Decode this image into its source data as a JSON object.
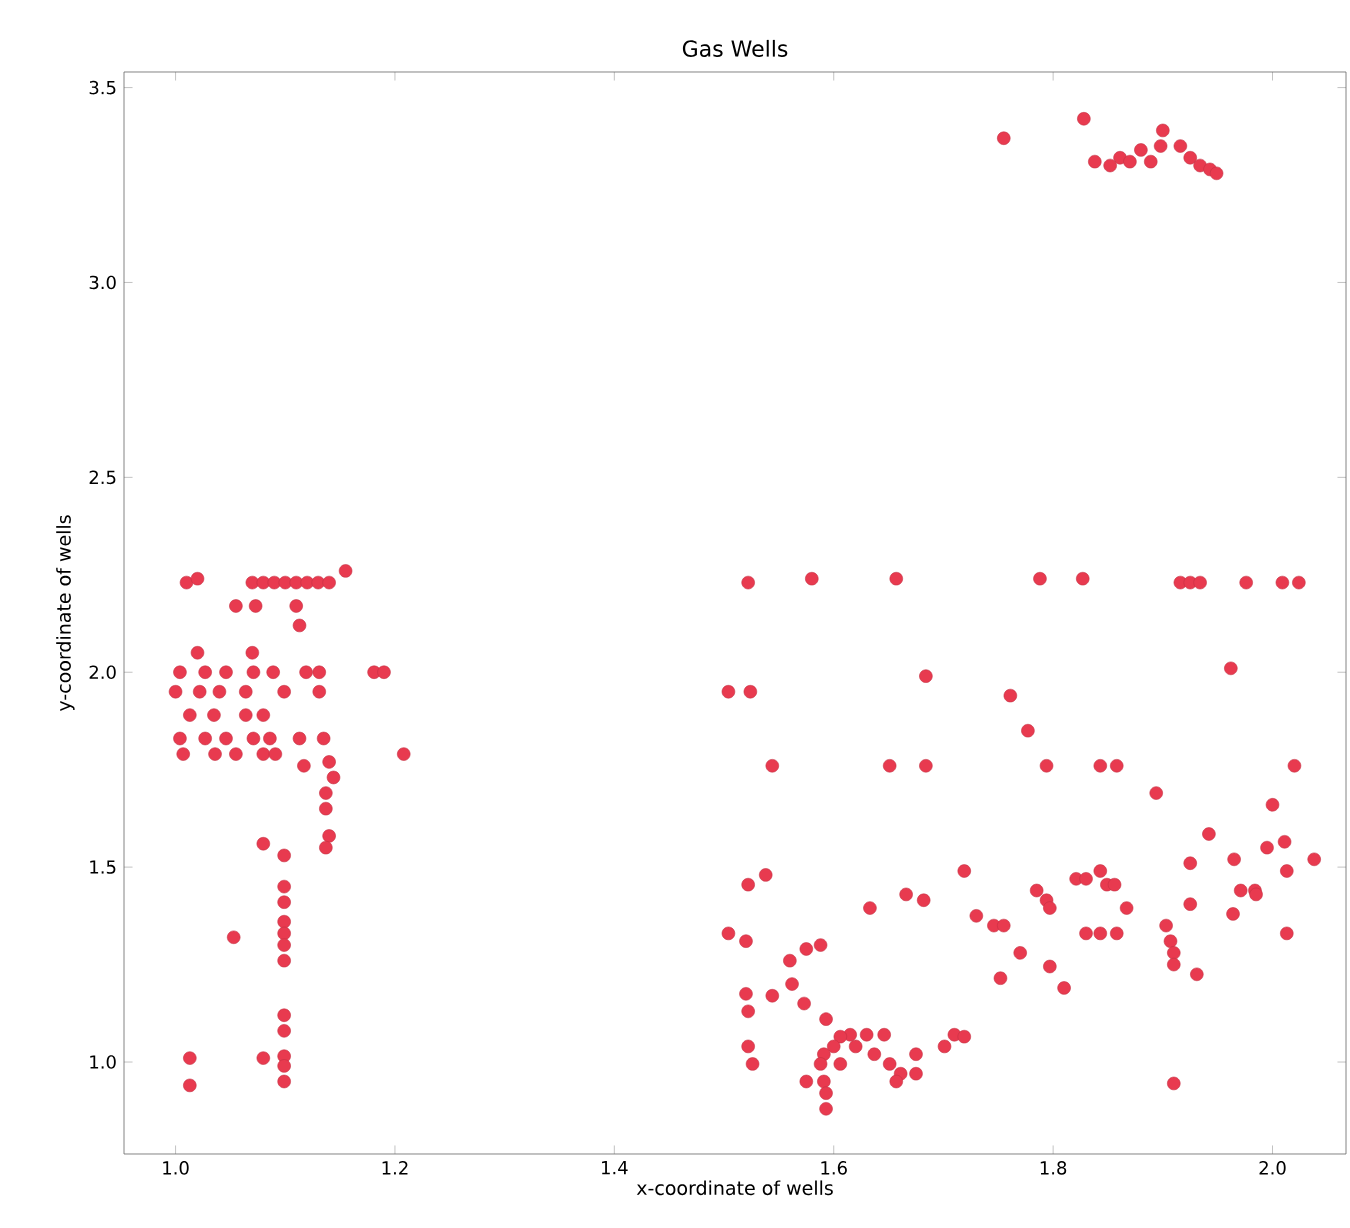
{
  "chart_data": {
    "type": "scatter",
    "title": "Gas Wells",
    "xlabel": "x-coordinate of wells",
    "ylabel": "y-coordinate of wells",
    "xlim": [
      0.953,
      2.067
    ],
    "ylim": [
      0.764,
      3.54
    ],
    "xticks": [
      {
        "value": 1.0,
        "label": "1.0"
      },
      {
        "value": 1.2,
        "label": "1.2"
      },
      {
        "value": 1.4,
        "label": "1.4"
      },
      {
        "value": 1.6,
        "label": "1.6"
      },
      {
        "value": 1.8,
        "label": "1.8"
      },
      {
        "value": 2.0,
        "label": "2.0"
      }
    ],
    "yticks": [
      {
        "value": 1.0,
        "label": "1.0"
      },
      {
        "value": 1.5,
        "label": "1.5"
      },
      {
        "value": 2.0,
        "label": "2.0"
      },
      {
        "value": 2.5,
        "label": "2.5"
      },
      {
        "value": 3.0,
        "label": "3.0"
      },
      {
        "value": 3.5,
        "label": "3.5"
      }
    ],
    "marker": "circle",
    "series": [
      {
        "color": "#e83a4f",
        "x": [
          1.01,
          1.02,
          1.07,
          1.08,
          1.09,
          1.1,
          1.11,
          1.12,
          1.13,
          1.14,
          1.155,
          1.055,
          1.073,
          1.11,
          1.113,
          1.02,
          1.07,
          1.004,
          1.027,
          1.046,
          1.071,
          1.089,
          1.119,
          1.131,
          1.181,
          1.19,
          1.0,
          1.022,
          1.04,
          1.064,
          1.099,
          1.131,
          1.013,
          1.035,
          1.064,
          1.08,
          1.004,
          1.027,
          1.046,
          1.071,
          1.086,
          1.007,
          1.036,
          1.055,
          1.08,
          1.091,
          1.113,
          1.117,
          1.135,
          1.14,
          1.144,
          1.137,
          1.137,
          1.14,
          1.137,
          1.208,
          1.099,
          1.099,
          1.099,
          1.099,
          1.099,
          1.099,
          1.099,
          1.099,
          1.099,
          1.099,
          1.099,
          1.099,
          1.08,
          1.053,
          1.013,
          1.013,
          1.08,
          1.522,
          1.58,
          1.657,
          1.788,
          1.827,
          1.916,
          1.925,
          1.934,
          1.976,
          2.009,
          2.024,
          1.962,
          1.684,
          1.504,
          1.524,
          1.761,
          1.777,
          1.544,
          1.651,
          1.684,
          1.794,
          1.843,
          1.858,
          2.02,
          1.894,
          2.0,
          1.942,
          2.011,
          1.995,
          2.038,
          1.965,
          1.925,
          2.013,
          1.719,
          1.843,
          1.538,
          1.821,
          1.83,
          1.849,
          1.856,
          1.522,
          1.785,
          1.971,
          1.984,
          1.666,
          1.985,
          1.682,
          1.794,
          1.925,
          1.633,
          1.867,
          1.797,
          1.964,
          1.73,
          1.746,
          1.755,
          1.903,
          1.504,
          1.83,
          1.843,
          1.858,
          2.013,
          1.52,
          1.907,
          1.588,
          1.575,
          1.77,
          1.91,
          1.56,
          1.91,
          1.797,
          1.931,
          1.752,
          1.562,
          1.81,
          1.52,
          1.544,
          1.573,
          1.522,
          1.593,
          1.615,
          1.63,
          1.646,
          1.71,
          1.719,
          1.606,
          1.522,
          1.6,
          1.62,
          1.701,
          1.591,
          1.637,
          1.675,
          1.526,
          1.588,
          1.606,
          1.651,
          1.661,
          1.675,
          1.575,
          1.591,
          1.657,
          1.91,
          1.593,
          1.593,
          1.828,
          1.755,
          1.838,
          1.861,
          1.88,
          1.898,
          1.9,
          1.916,
          1.925,
          1.934,
          1.943,
          1.949,
          1.889,
          1.87,
          1.852
        ],
        "values": [
          2.23,
          2.24,
          2.23,
          2.23,
          2.23,
          2.23,
          2.23,
          2.23,
          2.23,
          2.23,
          2.26,
          2.17,
          2.17,
          2.17,
          2.12,
          2.05,
          2.05,
          2.0,
          2.0,
          2.0,
          2.0,
          2.0,
          2.0,
          2.0,
          2.0,
          2.0,
          1.95,
          1.95,
          1.95,
          1.95,
          1.95,
          1.95,
          1.89,
          1.89,
          1.89,
          1.89,
          1.83,
          1.83,
          1.83,
          1.83,
          1.83,
          1.79,
          1.79,
          1.79,
          1.79,
          1.79,
          1.83,
          1.76,
          1.83,
          1.77,
          1.73,
          1.69,
          1.65,
          1.58,
          1.55,
          1.79,
          1.53,
          1.45,
          1.41,
          1.36,
          1.33,
          1.3,
          1.26,
          1.12,
          1.08,
          1.015,
          0.99,
          0.95,
          1.56,
          1.32,
          1.01,
          0.94,
          1.01,
          2.23,
          2.24,
          2.24,
          2.24,
          2.24,
          2.23,
          2.23,
          2.23,
          2.23,
          2.23,
          2.23,
          2.01,
          1.99,
          1.95,
          1.95,
          1.94,
          1.85,
          1.76,
          1.76,
          1.76,
          1.76,
          1.76,
          1.76,
          1.76,
          1.69,
          1.66,
          1.585,
          1.565,
          1.55,
          1.52,
          1.52,
          1.51,
          1.49,
          1.49,
          1.49,
          1.48,
          1.47,
          1.47,
          1.455,
          1.455,
          1.455,
          1.44,
          1.44,
          1.44,
          1.43,
          1.43,
          1.415,
          1.415,
          1.405,
          1.395,
          1.395,
          1.395,
          1.38,
          1.375,
          1.35,
          1.35,
          1.35,
          1.33,
          1.33,
          1.33,
          1.33,
          1.33,
          1.31,
          1.31,
          1.3,
          1.29,
          1.28,
          1.28,
          1.26,
          1.25,
          1.245,
          1.225,
          1.215,
          1.2,
          1.19,
          1.175,
          1.17,
          1.15,
          1.13,
          1.11,
          1.07,
          1.07,
          1.07,
          1.07,
          1.065,
          1.065,
          1.04,
          1.04,
          1.04,
          1.04,
          1.02,
          1.02,
          1.02,
          0.995,
          0.995,
          0.995,
          0.995,
          0.97,
          0.97,
          0.95,
          0.95,
          0.95,
          0.945,
          0.92,
          0.88,
          3.42,
          3.37,
          3.31,
          3.32,
          3.34,
          3.35,
          3.39,
          3.35,
          3.32,
          3.3,
          3.29,
          3.28,
          3.31,
          3.31,
          3.3
        ]
      }
    ]
  }
}
